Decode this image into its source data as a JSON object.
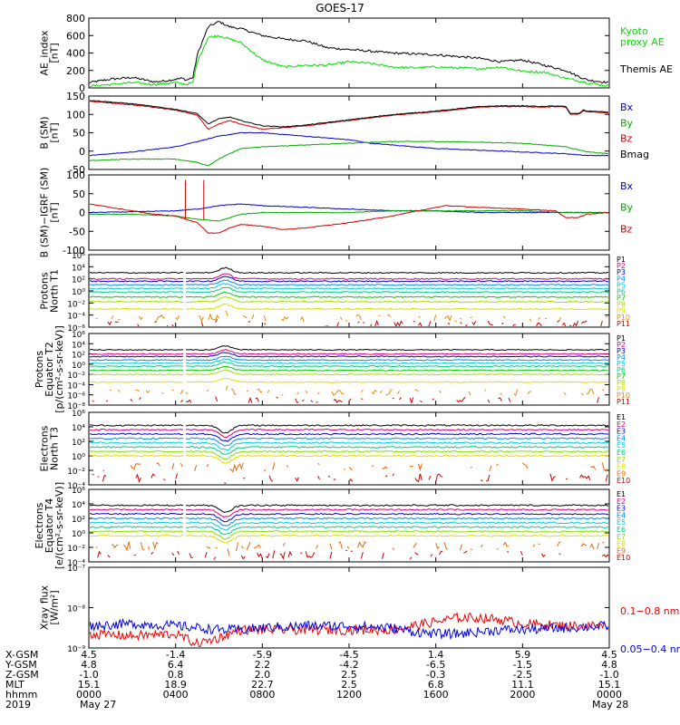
{
  "title": "GOES-17",
  "chart_data": [
    {
      "type": "line",
      "panel": "ae",
      "ylabel": [
        "AE_index",
        "[nT]"
      ],
      "ylim": [
        0,
        800
      ],
      "yticks": [
        "800",
        "600",
        "400",
        "200",
        "0"
      ],
      "legend": [
        {
          "name": "Kyoto",
          "color": "#00dd00"
        },
        {
          "name": "proxy AE",
          "color": "#00dd00"
        },
        {
          "name": "Themis AE",
          "color": "#000000"
        }
      ],
      "series": [
        {
          "name": "Themis AE",
          "color": "#000000",
          "x": [
            0,
            1,
            2,
            3,
            3.5,
            4,
            4.3,
            4.5,
            4.8,
            5,
            5.5,
            6,
            6.5,
            7,
            7.5,
            8,
            9,
            10,
            11,
            12,
            13,
            14,
            15,
            16,
            17,
            18,
            19,
            20,
            21,
            22,
            22.5,
            23,
            24
          ],
          "y": [
            60,
            100,
            120,
            70,
            80,
            100,
            110,
            90,
            120,
            380,
            700,
            760,
            700,
            680,
            640,
            600,
            560,
            540,
            460,
            440,
            420,
            400,
            390,
            380,
            360,
            340,
            300,
            320,
            260,
            200,
            140,
            90,
            60
          ]
        },
        {
          "name": "Kyoto proxy AE",
          "color": "#00dd00",
          "x": [
            0,
            1,
            2,
            3,
            4,
            4.5,
            4.8,
            5,
            5.5,
            6,
            6.5,
            7,
            7.5,
            8,
            9,
            10,
            11,
            12,
            13,
            14,
            15,
            16,
            17,
            18,
            19,
            20,
            21,
            22,
            23,
            24
          ],
          "y": [
            20,
            40,
            60,
            40,
            60,
            40,
            60,
            300,
            580,
            600,
            560,
            520,
            420,
            320,
            240,
            260,
            260,
            300,
            280,
            240,
            230,
            240,
            230,
            220,
            240,
            190,
            180,
            110,
            60,
            20
          ]
        }
      ]
    },
    {
      "type": "line",
      "panel": "b_sm",
      "ylabel": [
        "B (SM)",
        "[nT]"
      ],
      "ylim": [
        -60,
        150
      ],
      "yticks": [
        "150",
        "100",
        "50",
        "0",
        "-50"
      ],
      "legend": [
        {
          "name": "Bx",
          "color": "#0000cc"
        },
        {
          "name": "By",
          "color": "#00aa00"
        },
        {
          "name": "Bz",
          "color": "#cc0000"
        },
        {
          "name": "Bmag",
          "color": "#000000"
        }
      ],
      "series": [
        {
          "name": "Bx",
          "color": "#0000cc",
          "x": [
            0,
            2,
            4,
            5,
            6,
            6.5,
            7,
            8,
            9,
            10,
            11,
            12,
            13,
            14,
            16,
            18,
            20,
            22,
            23,
            24
          ],
          "y": [
            -20,
            -10,
            5,
            20,
            35,
            40,
            45,
            45,
            40,
            35,
            30,
            25,
            15,
            10,
            0,
            -5,
            -10,
            -15,
            -20,
            -20
          ]
        },
        {
          "name": "By",
          "color": "#00aa00",
          "x": [
            0,
            2,
            4,
            5,
            5.5,
            6,
            6.5,
            7,
            8,
            10,
            12,
            14,
            16,
            18,
            20,
            22,
            23,
            24
          ],
          "y": [
            -35,
            -30,
            -30,
            -40,
            -50,
            -30,
            -15,
            0,
            5,
            10,
            15,
            20,
            20,
            18,
            15,
            5,
            -10,
            -15
          ]
        },
        {
          "name": "Bz",
          "color": "#cc0000",
          "x": [
            0,
            1,
            2,
            3,
            4,
            5,
            5.5,
            6,
            6.5,
            7,
            8,
            9,
            10,
            12,
            14,
            16,
            18,
            19,
            20,
            21,
            21.5,
            22,
            22.2,
            22.6,
            22.8,
            23,
            24
          ],
          "y": [
            135,
            130,
            125,
            118,
            110,
            95,
            55,
            70,
            80,
            70,
            55,
            60,
            65,
            80,
            95,
            105,
            118,
            120,
            120,
            118,
            120,
            118,
            98,
            98,
            108,
            105,
            102
          ]
        },
        {
          "name": "Bmag",
          "color": "#000000",
          "x": [
            0,
            1,
            2,
            3,
            4,
            5,
            5.5,
            6,
            6.5,
            7,
            8,
            9,
            10,
            12,
            14,
            16,
            18,
            19,
            20,
            21,
            21.5,
            22,
            22.2,
            22.6,
            22.8,
            23,
            24
          ],
          "y": [
            138,
            133,
            128,
            120,
            112,
            100,
            70,
            85,
            90,
            80,
            65,
            62,
            67,
            82,
            97,
            107,
            120,
            122,
            122,
            120,
            122,
            120,
            100,
            100,
            110,
            107,
            104
          ]
        }
      ]
    },
    {
      "type": "line",
      "panel": "b_minus_igrf",
      "ylabel": [
        "B (SM)−IGRF (SM)",
        "[nT]"
      ],
      "ylim": [
        -110,
        110
      ],
      "yticks": [
        "100",
        "50",
        "0",
        "-50",
        "-100"
      ],
      "legend": [
        {
          "name": "Bx",
          "color": "#0000cc"
        },
        {
          "name": "By",
          "color": "#00aa00"
        },
        {
          "name": "Bz",
          "color": "#cc0000"
        }
      ],
      "series": [
        {
          "name": "Bx",
          "color": "#0000cc",
          "x": [
            0,
            2,
            4,
            5,
            6,
            7,
            8,
            10,
            12,
            14,
            16,
            18,
            20,
            22,
            24
          ],
          "y": [
            0,
            2,
            5,
            10,
            20,
            25,
            20,
            15,
            10,
            5,
            5,
            0,
            0,
            0,
            0
          ]
        },
        {
          "name": "By",
          "color": "#00aa00",
          "x": [
            0,
            2,
            4,
            5,
            6,
            6.5,
            7,
            8,
            10,
            12,
            14,
            16,
            18,
            20,
            22,
            24
          ],
          "y": [
            -5,
            -5,
            -10,
            -20,
            -25,
            -15,
            -5,
            0,
            0,
            0,
            5,
            5,
            5,
            5,
            0,
            0
          ]
        },
        {
          "name": "Bz",
          "color": "#cc0000",
          "x": [
            0,
            1,
            2,
            3,
            4,
            5,
            5.5,
            6,
            6.5,
            7,
            8,
            9,
            10,
            12,
            14,
            16,
            16.5,
            18,
            20,
            21.5,
            22,
            22.5,
            23,
            24
          ],
          "y": [
            25,
            15,
            5,
            -5,
            -10,
            -30,
            -60,
            -60,
            -45,
            -35,
            -40,
            -50,
            -45,
            -30,
            -10,
            15,
            20,
            15,
            10,
            5,
            -15,
            -15,
            -5,
            0
          ]
        }
      ]
    },
    {
      "type": "line",
      "panel": "protons_t1",
      "ylabel": [
        "Protons",
        "North T1"
      ],
      "log": true,
      "ylim": [
        -6,
        6
      ],
      "yticks": [
        "10⁶",
        "10⁴",
        "10²",
        "10⁰",
        "10⁻²",
        "10⁻⁴",
        "10⁻⁶"
      ],
      "channels": [
        "P1",
        "P2",
        "P3",
        "P4",
        "P5",
        "P6",
        "P7",
        "P8",
        "P9",
        "P10",
        "P11"
      ],
      "levels": [
        3.0,
        2.0,
        1.6,
        1.0,
        0.4,
        -0.2,
        -1.0,
        -1.8,
        -3.0,
        -4.5,
        -5.5
      ]
    },
    {
      "type": "line",
      "panel": "protons_t2",
      "ylabel": [
        "Protons",
        "Equator T2",
        "[p/(cm²-s-sr-keV)]"
      ],
      "log": true,
      "ylim": [
        -8,
        6
      ],
      "yticks": [
        "10⁶",
        "10⁴",
        "10²",
        "10⁰",
        "10⁻²",
        "10⁻⁴",
        "10⁻⁶",
        "10⁻⁸"
      ],
      "channels": [
        "P1",
        "P2",
        "P3",
        "P4",
        "P5",
        "P6",
        "P7",
        "P8",
        "P9",
        "P10",
        "P11"
      ],
      "levels": [
        2.8,
        2.0,
        1.5,
        0.8,
        0.2,
        -0.4,
        -1.2,
        -2.0,
        -3.5,
        -5.5,
        -7.0
      ]
    },
    {
      "type": "line",
      "panel": "electrons_t3",
      "ylabel": [
        "Electrons",
        "North T3"
      ],
      "log": true,
      "ylim": [
        -4,
        6
      ],
      "yticks": [
        "10⁶",
        "10⁴",
        "10²",
        "10⁰",
        "10⁻²",
        "10⁻⁴"
      ],
      "channels": [
        "E1",
        "E2",
        "E3",
        "E4",
        "E5",
        "E6",
        "E7",
        "E8",
        "E9",
        "E10"
      ],
      "levels": [
        4.2,
        3.6,
        3.0,
        2.4,
        1.8,
        1.2,
        0.6,
        0.0,
        -1.5,
        -3.0
      ]
    },
    {
      "type": "line",
      "panel": "electrons_t4",
      "ylabel": [
        "Electrons",
        "Equator T4",
        "[e/(cm²-s-sr-keV)]"
      ],
      "log": true,
      "ylim": [
        -4,
        6
      ],
      "yticks": [
        "10⁶",
        "10⁴",
        "10²",
        "10⁰",
        "10⁻²",
        "10⁻⁴"
      ],
      "channels": [
        "E1",
        "E2",
        "E3",
        "E4",
        "E5",
        "E6",
        "E7",
        "E8",
        "E9",
        "E10"
      ],
      "levels": [
        3.8,
        3.2,
        2.6,
        2.0,
        1.4,
        0.8,
        0.2,
        -0.4,
        -1.8,
        -3.0
      ]
    },
    {
      "type": "line",
      "panel": "xray",
      "ylabel": [
        "Xray flux",
        "[W/m²]"
      ],
      "log": true,
      "ylim": [
        -9,
        -7
      ],
      "yticks": [
        "10⁻⁷",
        "10⁻⁸",
        "10⁻⁹"
      ],
      "legend": [
        {
          "name": "0.1−0.8 nm",
          "color": "#ee0000"
        },
        {
          "name": "0.05−0.4 nm",
          "color": "#0000ee"
        }
      ],
      "series": [
        {
          "name": "0.1−0.8 nm",
          "color": "#ee0000",
          "x": [
            0,
            2,
            4,
            5,
            6,
            7,
            8,
            10,
            12,
            14,
            15,
            16,
            17,
            18,
            19,
            20,
            22,
            24
          ],
          "y": [
            -8.65,
            -8.7,
            -8.65,
            -8.9,
            -8.75,
            -8.55,
            -8.55,
            -8.55,
            -8.55,
            -8.55,
            -8.45,
            -8.35,
            -8.25,
            -8.25,
            -8.3,
            -8.4,
            -8.45,
            -8.45
          ]
        },
        {
          "name": "0.05−0.4 nm",
          "color": "#0000ee",
          "x": [
            0,
            2,
            4,
            5,
            6,
            7,
            8,
            10,
            12,
            14,
            15,
            16,
            17,
            18,
            19,
            20,
            22,
            24
          ],
          "y": [
            -8.45,
            -8.4,
            -8.45,
            -8.5,
            -8.55,
            -8.55,
            -8.5,
            -8.45,
            -8.45,
            -8.5,
            -8.6,
            -8.65,
            -8.65,
            -8.6,
            -8.55,
            -8.55,
            -8.5,
            -8.45
          ]
        }
      ]
    }
  ],
  "x_axis": {
    "rows": [
      {
        "label": "X-GSM",
        "values": [
          "4.5",
          "-1.4",
          "-5.9",
          "-4.5",
          "1.4",
          "5.9",
          "4.5"
        ]
      },
      {
        "label": "Y-GSM",
        "values": [
          "4.8",
          "6.4",
          "2.2",
          "-4.2",
          "-6.5",
          "-1.5",
          "4.8"
        ]
      },
      {
        "label": "Z-GSM",
        "values": [
          "-1.0",
          "0.8",
          "2.0",
          "2.5",
          "-0.3",
          "-2.5",
          "-1.0"
        ]
      },
      {
        "label": "MLT",
        "values": [
          "15.1",
          "18.9",
          "22.7",
          "2.5",
          "6.8",
          "11.1",
          "15.1"
        ]
      },
      {
        "label": "hhmm",
        "values": [
          "0000",
          "0400",
          "0800",
          "1200",
          "1600",
          "2000",
          "0000"
        ]
      },
      {
        "label": "2019",
        "values": [
          "May 27",
          "",
          "",
          "",
          "",
          "",
          "May 28"
        ]
      }
    ]
  },
  "colors": {
    "channels11": [
      "#000000",
      "#dd0077",
      "#0000dd",
      "#0088ff",
      "#00ccdd",
      "#00cc88",
      "#00cc00",
      "#aadd00",
      "#dddd00",
      "#ee8800",
      "#cc0000"
    ],
    "channels10": [
      "#000000",
      "#dd0077",
      "#0000dd",
      "#0088ff",
      "#00ccdd",
      "#00cc88",
      "#88dd00",
      "#dddd00",
      "#ee6600",
      "#cc0000"
    ]
  }
}
